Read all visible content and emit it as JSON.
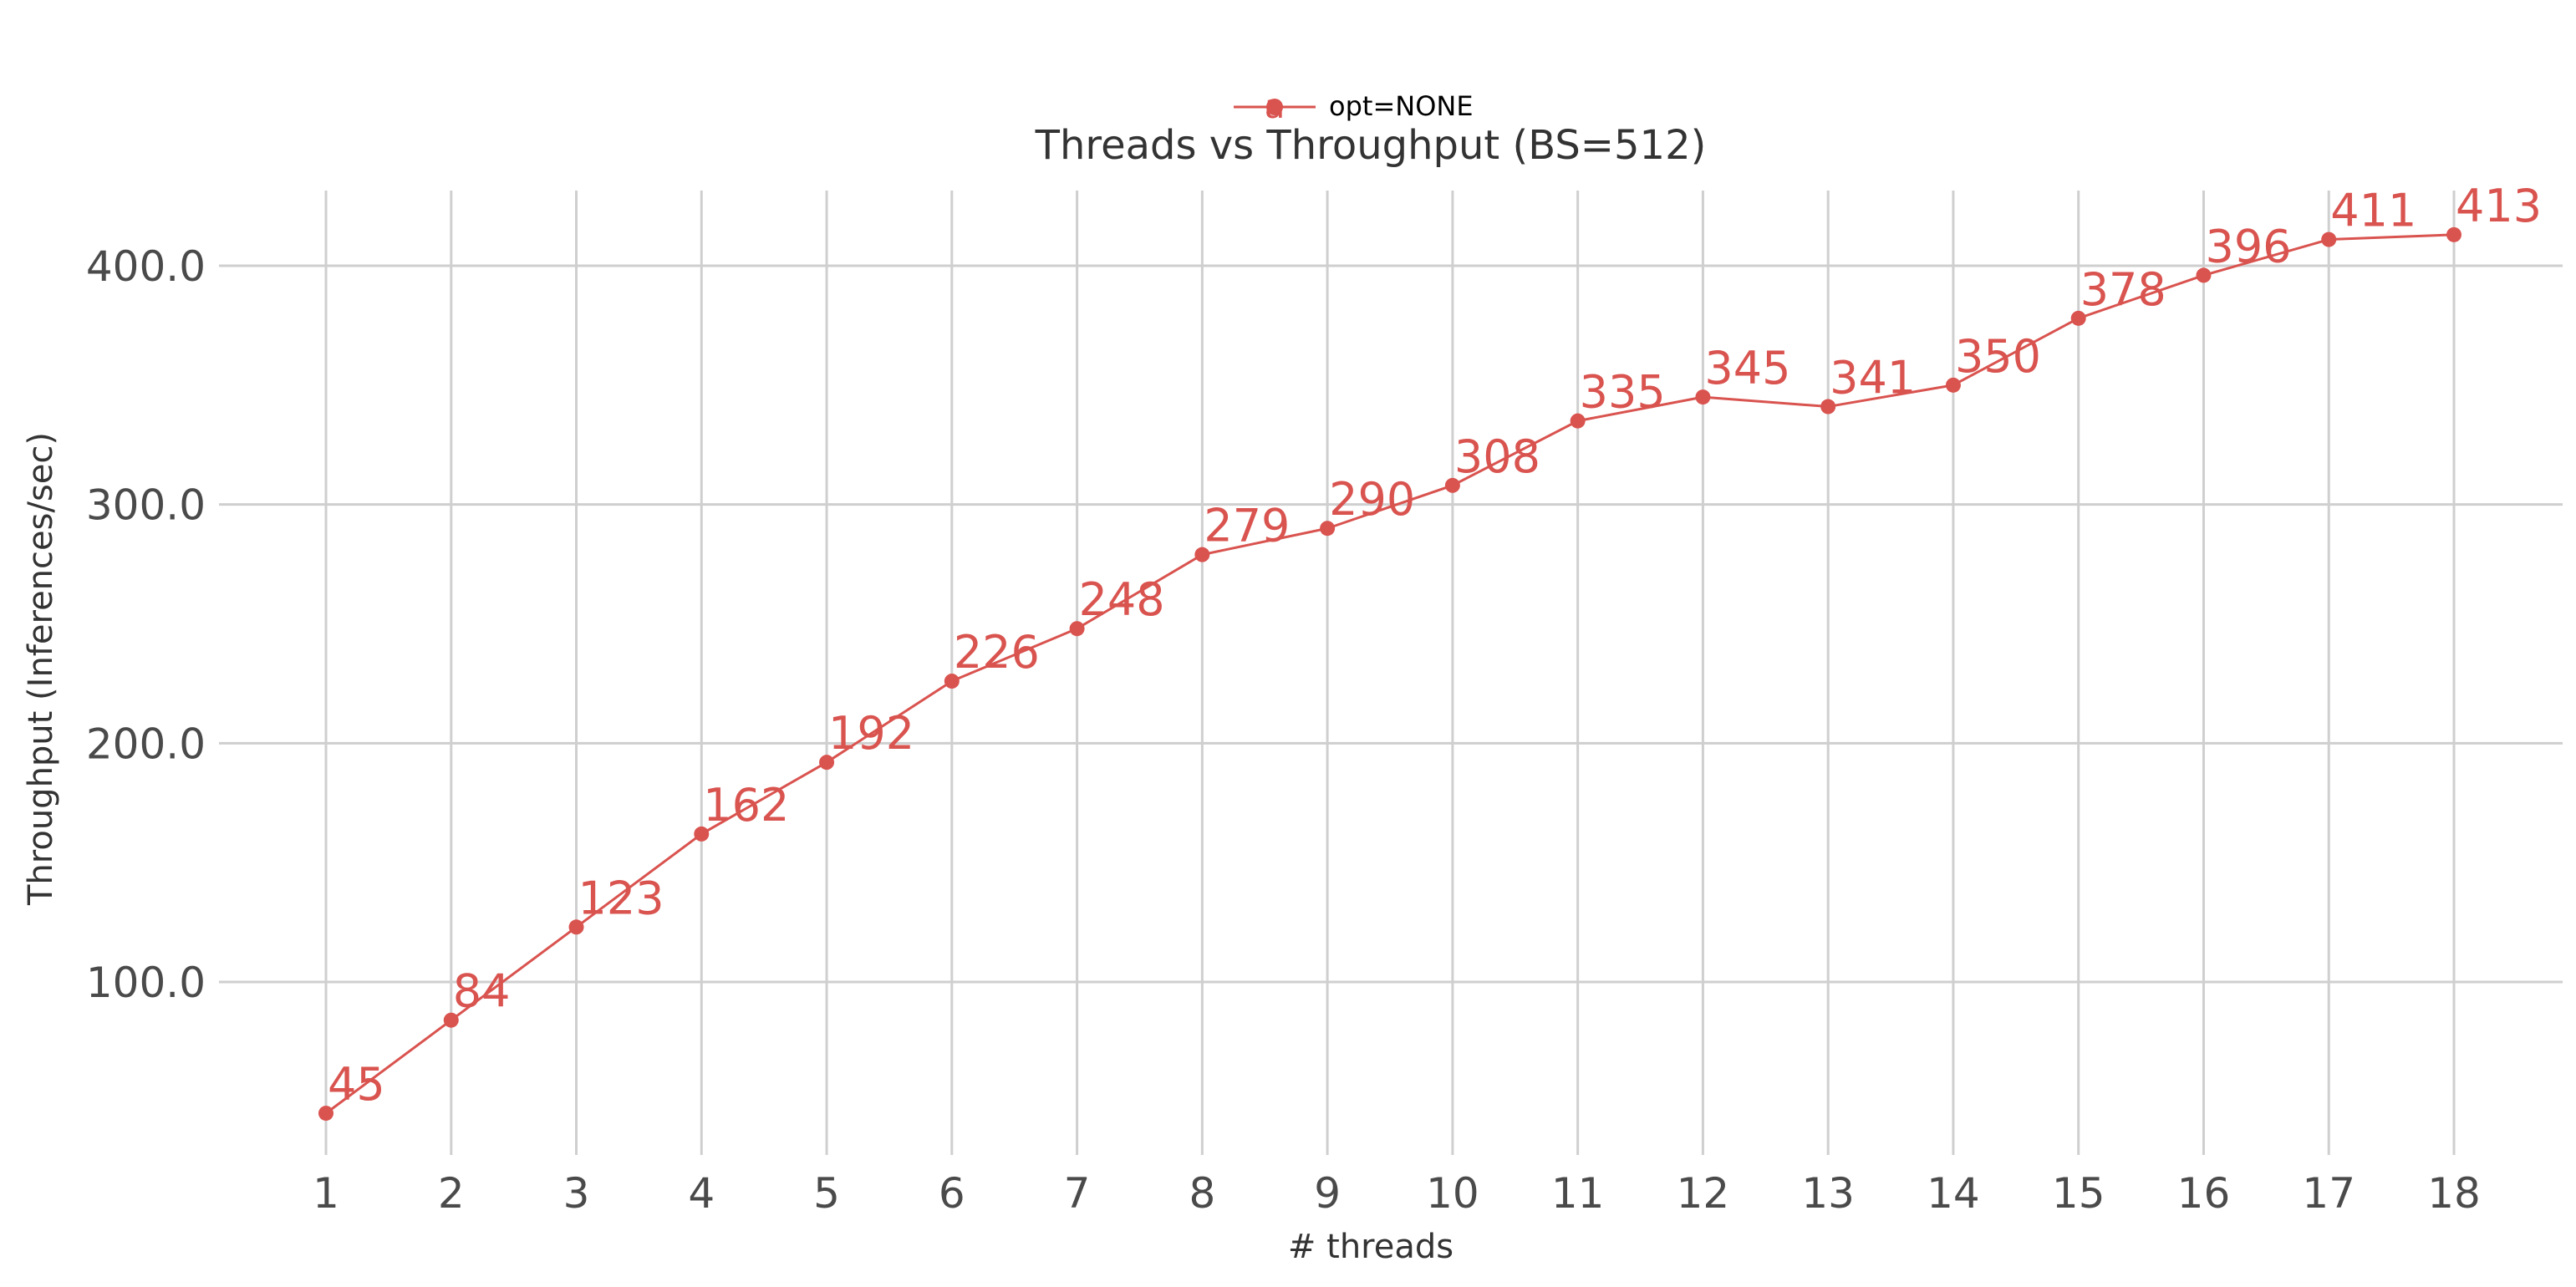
{
  "chart_data": {
    "type": "line",
    "title": "Threads vs Throughput (BS=512)",
    "xlabel": "# threads",
    "ylabel": "Throughput (Inferences/sec)",
    "x": [
      1,
      2,
      3,
      4,
      5,
      6,
      7,
      8,
      9,
      10,
      11,
      12,
      13,
      14,
      15,
      16,
      17,
      18
    ],
    "series": [
      {
        "name": "opt=NONE",
        "color": "#d9534f",
        "values": [
          45,
          84,
          123,
          162,
          192,
          226,
          248,
          279,
          290,
          308,
          335,
          345,
          341,
          350,
          378,
          396,
          411,
          413
        ]
      }
    ],
    "yticks": [
      100.0,
      200.0,
      300.0,
      400.0
    ],
    "ytick_labels": [
      "100.0",
      "200.0",
      "300.0",
      "400.0"
    ],
    "xtick_labels": [
      "1",
      "2",
      "3",
      "4",
      "5",
      "6",
      "7",
      "8",
      "9",
      "10",
      "11",
      "12",
      "13",
      "14",
      "15",
      "16",
      "17",
      "18"
    ],
    "ylim": [
      30,
      432
    ],
    "grid": true,
    "legend_position": "top-center",
    "legend_marker_glyph": "a"
  }
}
